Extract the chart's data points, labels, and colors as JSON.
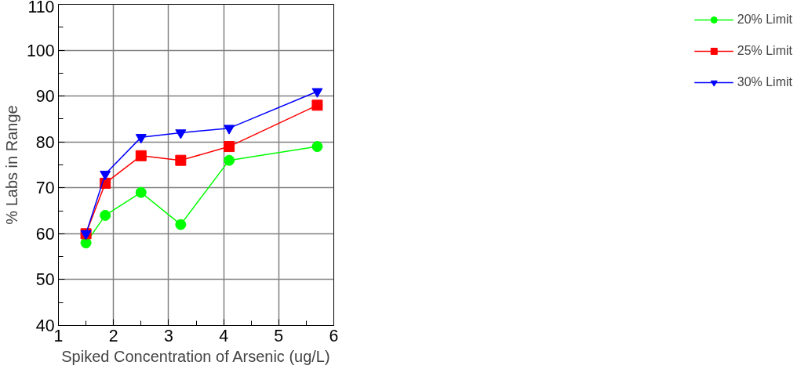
{
  "chart_data": {
    "type": "line",
    "xlabel": "Spiked Concentration of Arsenic (ug/L)",
    "ylabel": "% Labs in Range",
    "x": [
      1.5,
      1.85,
      2.5,
      3.22,
      4.1,
      5.7
    ],
    "series": [
      {
        "name": "20% Limit",
        "color": "#00ff00",
        "marker": "circle",
        "values": [
          58,
          64,
          69,
          62,
          76,
          79
        ]
      },
      {
        "name": "25% Limit",
        "color": "#ff0000",
        "marker": "square",
        "values": [
          60,
          71,
          77,
          76,
          79,
          88
        ]
      },
      {
        "name": "30% Limit",
        "color": "#0000ff",
        "marker": "triangle",
        "values": [
          60,
          73,
          81,
          82,
          83,
          91
        ]
      }
    ],
    "xlim": [
      1,
      6
    ],
    "xticks": [
      1,
      2,
      3,
      4,
      5,
      6
    ],
    "ylim": [
      40,
      110
    ],
    "yticks": [
      40,
      50,
      60,
      70,
      80,
      90,
      100,
      110
    ],
    "grid": true,
    "legend": "right",
    "line_style": "solid"
  }
}
